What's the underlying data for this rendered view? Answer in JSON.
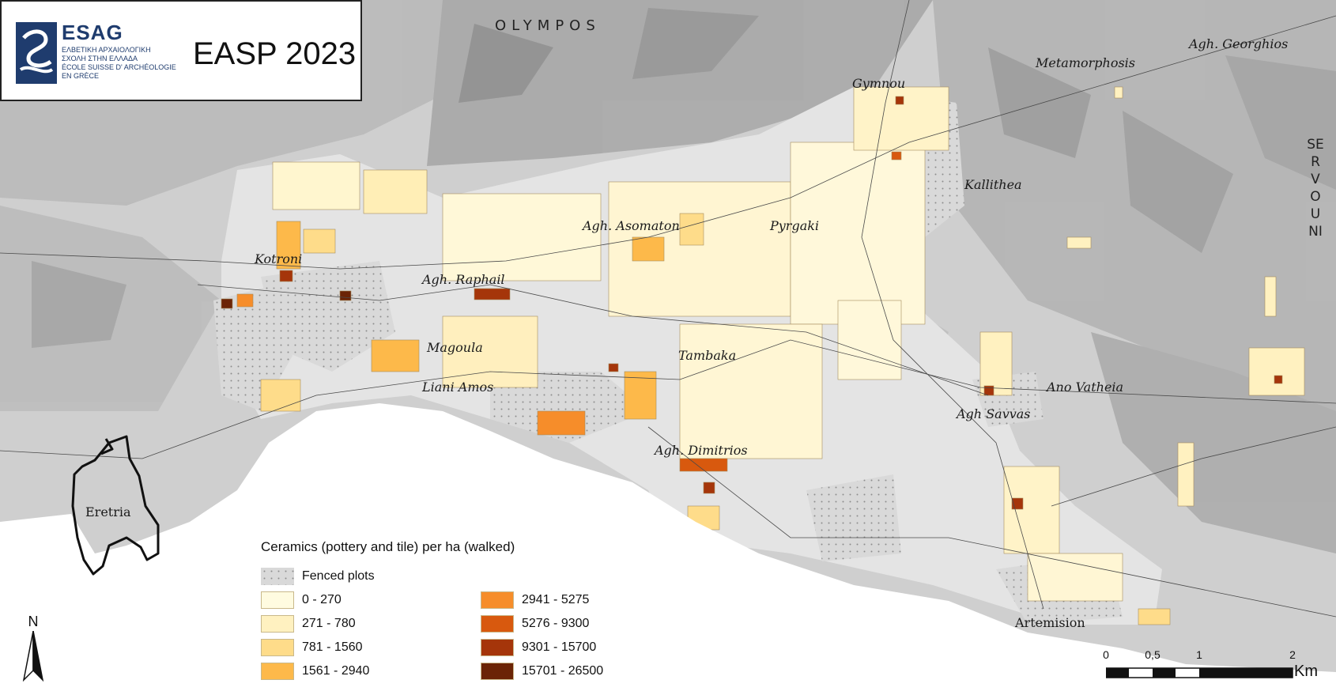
{
  "header": {
    "logo_name": "ESAG",
    "logo_lines": [
      "ΕΛΒΕΤΙΚΗ ΑΡΧΑΙΟΛΟΓΙΚΗ",
      "ΣΧΟΛΗ ΣΤΗΝ ΕΛΛΑΔΑ",
      "ÉCOLE SUISSE D' ARCHÉOLOGIE",
      "EN GRÈCE"
    ],
    "project_title": "EASP 2023"
  },
  "mountains": {
    "olympos": "OLYMPOS",
    "servouni": "SERVOUNI"
  },
  "places": {
    "gymnou": "Gymnou",
    "metamorphosis": "Metamorphosis",
    "agh_georghios": "Agh. Georghios",
    "kallithea": "Kallithea",
    "agh_asomaton": "Agh. Asomaton",
    "pyrgaki": "Pyrgaki",
    "kotroni": "Kotroni",
    "agh_raphail": "Agh. Raphail",
    "magoula": "Magoula",
    "tambaka": "Tambaka",
    "liani_amos": "Liani Amos",
    "ano_vatheia": "Ano Vatheia",
    "agh_savvas": "Agh Savvas",
    "agh_dimitrios": "Agh. Dimitrios",
    "eretria": "Eretria",
    "artemision": "Artemision"
  },
  "legend": {
    "title": "Ceramics (pottery and tile) per ha (walked)",
    "fenced_label": "Fenced plots",
    "classes": [
      {
        "label": "0 - 270",
        "color": "#fffbe0"
      },
      {
        "label": "271 - 780",
        "color": "#fff1c0"
      },
      {
        "label": "781 - 1560",
        "color": "#fedc8a"
      },
      {
        "label": "1561 - 2940",
        "color": "#fdb94a"
      },
      {
        "label": "2941 - 5275",
        "color": "#f68d2a"
      },
      {
        "label": "5276 - 9300",
        "color": "#d8590e"
      },
      {
        "label": "9301 - 15700",
        "color": "#a5350a"
      },
      {
        "label": "15701 - 26500",
        "color": "#6b2406"
      }
    ]
  },
  "compass": {
    "north": "N"
  },
  "scale": {
    "ticks": [
      "0",
      "0,5",
      "1",
      "2"
    ],
    "unit": "Km"
  },
  "colors": {
    "sea": "#ffffff",
    "relief": "#c9c9c9",
    "survey_outline": "#8a7a5a",
    "border": "#222222"
  }
}
